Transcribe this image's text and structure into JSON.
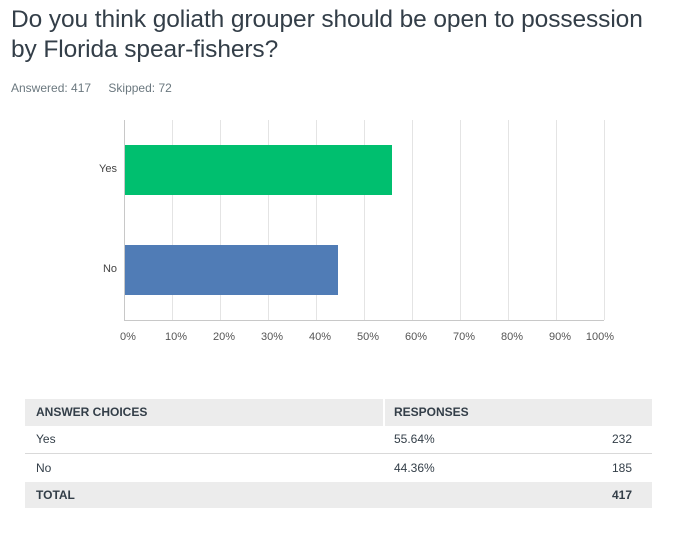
{
  "question": {
    "title": "Do you think goliath grouper should be open to possession by Florida spear-fishers?",
    "answered_label": "Answered: 417",
    "skipped_label": "Skipped: 72"
  },
  "chart_data": {
    "type": "bar",
    "orientation": "horizontal",
    "title": "Do you think goliath grouper should be open to possession by Florida spear-fishers?",
    "categories": [
      "Yes",
      "No"
    ],
    "values": [
      55.64,
      44.36
    ],
    "colors": [
      "#00BF6F",
      "#507CB6"
    ],
    "xlabel": "",
    "ylabel": "",
    "xlim": [
      0,
      100
    ],
    "x_ticks": [
      "0%",
      "10%",
      "20%",
      "30%",
      "40%",
      "50%",
      "60%",
      "70%",
      "80%",
      "90%",
      "100%"
    ],
    "grid": true,
    "legend": null
  },
  "table": {
    "headers": {
      "choice": "ANSWER CHOICES",
      "responses": "RESPONSES"
    },
    "rows": [
      {
        "choice": "Yes",
        "percent": "55.64%",
        "count": "232"
      },
      {
        "choice": "No",
        "percent": "44.36%",
        "count": "185"
      }
    ],
    "total": {
      "label": "TOTAL",
      "count": "417"
    }
  }
}
